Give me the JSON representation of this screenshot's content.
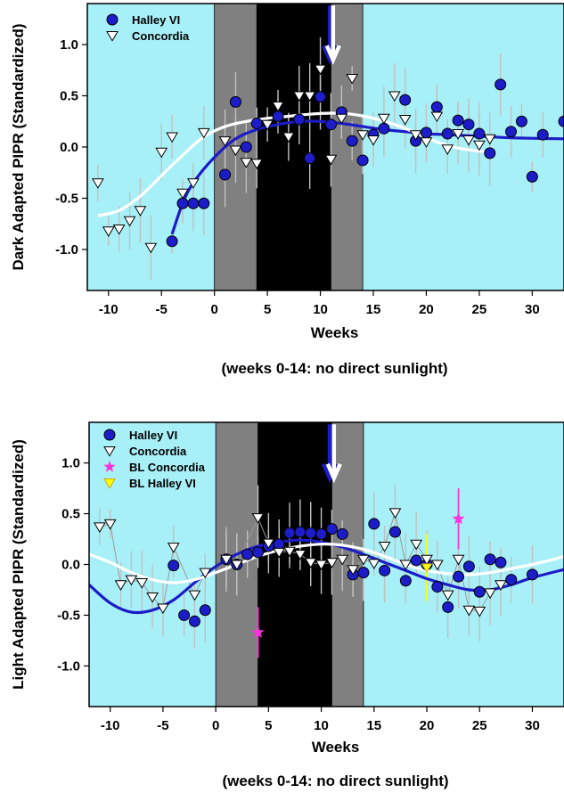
{
  "colors": {
    "background": "#a8f0f8",
    "twilight": "#808080",
    "polar_night": "#000000",
    "halley": "#1c1cc8",
    "concordia": "#ffffff",
    "bl_concordia": "#ff33dd",
    "bl_halley": "#ffff00",
    "errorbar": "#c0c0c0"
  },
  "chart_data": [
    {
      "type": "scatter",
      "panel": "top",
      "ylabel": "Dark Adapted PIPR (Standardized)",
      "xlabel": "Weeks",
      "subtitle": "(weeks 0-14: no direct sunlight)",
      "xlim": [
        -12,
        33
      ],
      "ylim": [
        -1.4,
        1.4
      ],
      "xticks": [
        -10,
        -5,
        0,
        5,
        10,
        15,
        20,
        25,
        30
      ],
      "yticks": [
        -1.0,
        -0.5,
        0.0,
        0.5,
        1.0
      ],
      "ytick_labels": [
        "-1.0",
        "-0.5",
        "0.0",
        "0.5",
        "1.0"
      ],
      "shaded": {
        "twilight": [
          [
            0,
            4
          ],
          [
            11,
            14
          ]
        ],
        "dark": [
          [
            4,
            11
          ]
        ]
      },
      "legend": [
        {
          "label": "Halley VI",
          "marker": "circle",
          "color": "#1c1cc8"
        },
        {
          "label": "Concordia",
          "marker": "triangle-down",
          "color": "#ffffff"
        }
      ],
      "arrows": [
        {
          "x": 10.9,
          "color": "#1c1cc8",
          "y_from": 1.38,
          "y_to": 0.85
        },
        {
          "x": 11.2,
          "color": "#ffffff",
          "y_from": 1.38,
          "y_to": 0.85
        }
      ],
      "series": [
        {
          "name": "Halley VI",
          "marker": "circle",
          "points": [
            [
              -4,
              -0.92
            ],
            [
              -3,
              -0.55
            ],
            [
              -2,
              -0.55
            ],
            [
              -1,
              -0.55
            ],
            [
              1,
              -0.27
            ],
            [
              2,
              0.44
            ],
            [
              3,
              0.0
            ],
            [
              4,
              0.23
            ],
            [
              6,
              0.3
            ],
            [
              8,
              0.27
            ],
            [
              9,
              -0.11
            ],
            [
              10,
              0.49
            ],
            [
              11,
              0.22
            ],
            [
              12,
              0.34
            ],
            [
              13,
              0.06
            ],
            [
              14,
              -0.13
            ],
            [
              15,
              0.12
            ],
            [
              16,
              0.18
            ],
            [
              18,
              0.46
            ],
            [
              19,
              0.06
            ],
            [
              20,
              0.14
            ],
            [
              21,
              0.39
            ],
            [
              22,
              0.13
            ],
            [
              23,
              0.26
            ],
            [
              24,
              0.22
            ],
            [
              25,
              0.13
            ],
            [
              26,
              -0.06
            ],
            [
              27,
              0.61
            ],
            [
              28,
              0.15
            ],
            [
              29,
              0.25
            ],
            [
              30,
              -0.29
            ],
            [
              31,
              0.12
            ],
            [
              33,
              0.25
            ]
          ],
          "fit": [
            [
              -4,
              -0.85
            ],
            [
              -3,
              -0.55
            ],
            [
              -2,
              -0.35
            ],
            [
              0,
              -0.1
            ],
            [
              2,
              0.08
            ],
            [
              4,
              0.17
            ],
            [
              6,
              0.22
            ],
            [
              8,
              0.25
            ],
            [
              10,
              0.25
            ],
            [
              12,
              0.23
            ],
            [
              14,
              0.2
            ],
            [
              16,
              0.17
            ],
            [
              18,
              0.15
            ],
            [
              20,
              0.13
            ],
            [
              22,
              0.12
            ],
            [
              24,
              0.11
            ],
            [
              26,
              0.1
            ],
            [
              28,
              0.09
            ],
            [
              30,
              0.085
            ],
            [
              33,
              0.08
            ]
          ]
        },
        {
          "name": "Concordia",
          "marker": "triangle-down",
          "points": [
            [
              -11,
              -0.35
            ],
            [
              -10,
              -0.82
            ],
            [
              -9,
              -0.8
            ],
            [
              -8,
              -0.72
            ],
            [
              -7,
              -0.62
            ],
            [
              -6,
              -0.98
            ],
            [
              -5,
              -0.05
            ],
            [
              -4,
              0.1
            ],
            [
              -3,
              -0.45
            ],
            [
              -2,
              -0.35
            ],
            [
              -1,
              0.14
            ],
            [
              1,
              0.06
            ],
            [
              2,
              -0.03
            ],
            [
              3,
              -0.15
            ],
            [
              4,
              -0.16
            ],
            [
              5,
              0.22
            ],
            [
              6,
              0.4
            ],
            [
              7,
              0.1
            ],
            [
              8,
              0.5
            ],
            [
              9,
              0.5
            ],
            [
              10,
              0.76
            ],
            [
              11,
              -0.12
            ],
            [
              12,
              0.28
            ],
            [
              13,
              0.67
            ],
            [
              14,
              0.12
            ],
            [
              15,
              0.07
            ],
            [
              16,
              0.28
            ],
            [
              17,
              0.5
            ],
            [
              18,
              0.27
            ],
            [
              19,
              0.12
            ],
            [
              20,
              0.05
            ],
            [
              21,
              0.3
            ],
            [
              22,
              -0.02
            ],
            [
              23,
              0.13
            ],
            [
              24,
              0.07
            ],
            [
              25,
              0.02
            ],
            [
              26,
              0.08
            ]
          ],
          "fit": [
            [
              -11,
              -0.67
            ],
            [
              -9,
              -0.62
            ],
            [
              -7,
              -0.48
            ],
            [
              -5,
              -0.28
            ],
            [
              -3,
              -0.08
            ],
            [
              -1,
              0.1
            ],
            [
              1,
              0.2
            ],
            [
              3,
              0.25
            ],
            [
              5,
              0.28
            ],
            [
              7,
              0.3
            ],
            [
              9,
              0.32
            ],
            [
              11,
              0.33
            ],
            [
              13,
              0.32
            ],
            [
              15,
              0.28
            ],
            [
              17,
              0.22
            ],
            [
              19,
              0.14
            ],
            [
              21,
              0.05
            ],
            [
              23,
              -0.01
            ],
            [
              25,
              -0.04
            ],
            [
              26,
              -0.05
            ]
          ]
        }
      ]
    },
    {
      "type": "scatter",
      "panel": "bottom",
      "ylabel": "Light Adapted PIPR (Standardized)",
      "xlabel": "Weeks",
      "subtitle": "(weeks 0-14: no direct sunlight)",
      "xlim": [
        -12,
        33
      ],
      "ylim": [
        -1.4,
        1.4
      ],
      "xticks": [
        -10,
        -5,
        0,
        5,
        10,
        15,
        20,
        25,
        30
      ],
      "yticks": [
        -1.0,
        -0.5,
        0.0,
        0.5,
        1.0
      ],
      "ytick_labels": [
        "-1.0",
        "-0.5",
        "0.0",
        "0.5",
        "1.0"
      ],
      "shaded": {
        "twilight": [
          [
            0,
            4
          ],
          [
            11,
            14
          ]
        ],
        "dark": [
          [
            4,
            11
          ]
        ]
      },
      "legend": [
        {
          "label": "Halley VI",
          "marker": "circle",
          "color": "#1c1cc8"
        },
        {
          "label": "Concordia",
          "marker": "triangle-down",
          "color": "#ffffff"
        },
        {
          "label": "BL Concordia",
          "marker": "star",
          "color": "#ff33dd"
        },
        {
          "label": "BL Halley VI",
          "marker": "triangle-down",
          "color": "#ffff00"
        }
      ],
      "arrows": [
        {
          "x": 10.8,
          "color": "#1c1cc8",
          "y_from": 1.38,
          "y_to": 0.85
        },
        {
          "x": 11.2,
          "color": "#ffffff",
          "y_from": 1.38,
          "y_to": 0.85
        }
      ],
      "series": [
        {
          "name": "Halley VI",
          "marker": "circle",
          "points": [
            [
              -4,
              -0.01
            ],
            [
              -3,
              -0.5
            ],
            [
              -2,
              -0.56
            ],
            [
              -1,
              -0.45
            ],
            [
              1,
              0.05
            ],
            [
              2,
              0.0
            ],
            [
              3,
              0.1
            ],
            [
              4,
              0.12
            ],
            [
              5,
              0.18
            ],
            [
              6,
              0.2
            ],
            [
              7,
              0.31
            ],
            [
              8,
              0.32
            ],
            [
              9,
              0.31
            ],
            [
              10,
              0.3
            ],
            [
              11,
              0.35
            ],
            [
              12,
              0.3
            ],
            [
              13,
              -0.1
            ],
            [
              14,
              -0.08
            ],
            [
              15,
              0.4
            ],
            [
              16,
              -0.06
            ],
            [
              17,
              0.32
            ],
            [
              18,
              -0.16
            ],
            [
              19,
              0.04
            ],
            [
              20,
              0.0
            ],
            [
              21,
              -0.22
            ],
            [
              22,
              -0.42
            ],
            [
              23,
              -0.12
            ],
            [
              24,
              -0.02
            ],
            [
              25,
              -0.27
            ],
            [
              26,
              0.05
            ],
            [
              27,
              0.02
            ],
            [
              28,
              -0.15
            ],
            [
              30,
              -0.1
            ]
          ],
          "fit": [
            [
              -12,
              -0.2
            ],
            [
              -10,
              -0.38
            ],
            [
              -8,
              -0.47
            ],
            [
              -6,
              -0.45
            ],
            [
              -4,
              -0.35
            ],
            [
              -2,
              -0.18
            ],
            [
              0,
              -0.02
            ],
            [
              2,
              0.1
            ],
            [
              4,
              0.18
            ],
            [
              6,
              0.22
            ],
            [
              8,
              0.24
            ],
            [
              10,
              0.22
            ],
            [
              12,
              0.17
            ],
            [
              14,
              0.1
            ],
            [
              16,
              0.02
            ],
            [
              18,
              -0.06
            ],
            [
              20,
              -0.14
            ],
            [
              22,
              -0.2
            ],
            [
              24,
              -0.25
            ],
            [
              26,
              -0.25
            ],
            [
              28,
              -0.2
            ],
            [
              30,
              -0.13
            ],
            [
              33,
              -0.05
            ]
          ]
        },
        {
          "name": "Concordia",
          "marker": "triangle-down",
          "points": [
            [
              -11,
              0.37
            ],
            [
              -10,
              0.4
            ],
            [
              -9,
              -0.2
            ],
            [
              -8,
              -0.15
            ],
            [
              -7,
              -0.18
            ],
            [
              -6,
              -0.32
            ],
            [
              -5,
              -0.43
            ],
            [
              -4,
              0.17
            ],
            [
              -2,
              -0.3
            ],
            [
              -1,
              -0.08
            ],
            [
              1,
              0.05
            ],
            [
              2,
              0.0
            ],
            [
              4,
              0.46
            ],
            [
              5,
              0.21
            ],
            [
              6,
              0.12
            ],
            [
              7,
              0.13
            ],
            [
              8,
              0.1
            ],
            [
              9,
              0.02
            ],
            [
              10,
              0.0
            ],
            [
              11,
              0.02
            ],
            [
              12,
              0.05
            ],
            [
              13,
              -0.05
            ],
            [
              14,
              0.05
            ],
            [
              15,
              0.01
            ],
            [
              16,
              0.18
            ],
            [
              17,
              0.51
            ],
            [
              18,
              0.0
            ],
            [
              19,
              0.2
            ],
            [
              20,
              0.05
            ],
            [
              21,
              0.0
            ],
            [
              22,
              -0.3
            ],
            [
              23,
              0.05
            ],
            [
              24,
              -0.45
            ],
            [
              25,
              -0.46
            ],
            [
              26,
              -0.28
            ],
            [
              27,
              -0.2
            ]
          ],
          "fit": [
            [
              -12,
              0.1
            ],
            [
              -10,
              0.02
            ],
            [
              -8,
              -0.08
            ],
            [
              -6,
              -0.15
            ],
            [
              -4,
              -0.18
            ],
            [
              -2,
              -0.15
            ],
            [
              0,
              -0.08
            ],
            [
              2,
              0.0
            ],
            [
              4,
              0.08
            ],
            [
              6,
              0.14
            ],
            [
              8,
              0.18
            ],
            [
              10,
              0.2
            ],
            [
              12,
              0.19
            ],
            [
              14,
              0.15
            ],
            [
              16,
              0.08
            ],
            [
              18,
              0.0
            ],
            [
              20,
              -0.06
            ],
            [
              22,
              -0.09
            ],
            [
              24,
              -0.1
            ],
            [
              26,
              -0.08
            ],
            [
              28,
              -0.04
            ],
            [
              30,
              0.0
            ],
            [
              32,
              0.05
            ],
            [
              33,
              0.08
            ]
          ]
        },
        {
          "name": "BL Concordia",
          "marker": "star",
          "points": [
            [
              4,
              -0.67
            ],
            [
              23,
              0.45
            ]
          ],
          "errors": [
            0.25,
            0.3
          ]
        },
        {
          "name": "BL Halley VI",
          "marker": "triangle-down",
          "points": [
            [
              20,
              -0.03
            ]
          ],
          "errors": [
            0.33
          ]
        }
      ]
    }
  ]
}
